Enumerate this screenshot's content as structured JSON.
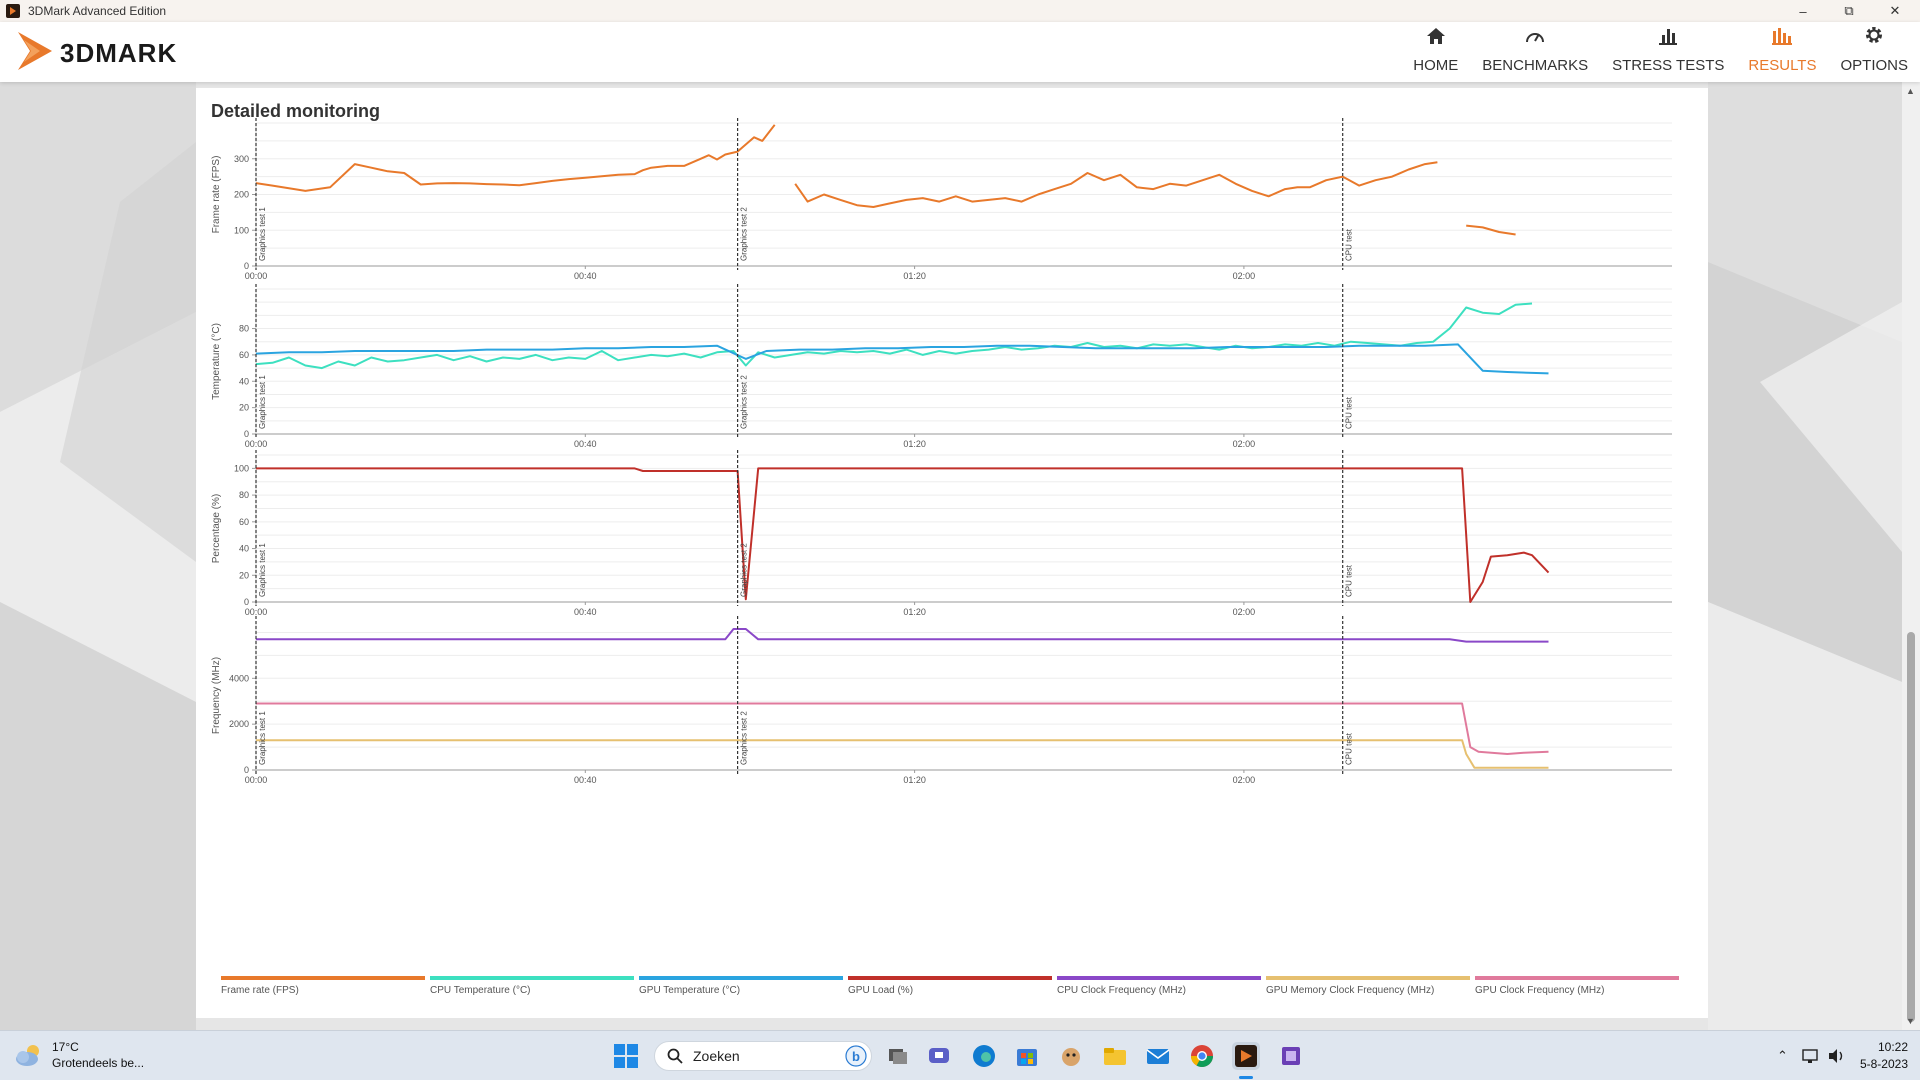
{
  "window": {
    "title": "3DMark Advanced Edition"
  },
  "brand": {
    "name": "3DMARK",
    "accent": "#e8792b"
  },
  "nav": [
    {
      "label": "HOME",
      "icon": "home-icon",
      "active": false
    },
    {
      "label": "BENCHMARKS",
      "icon": "gauge-icon",
      "active": false
    },
    {
      "label": "STRESS TESTS",
      "icon": "bar-chart-icon",
      "active": false
    },
    {
      "label": "RESULTS",
      "icon": "results-icon",
      "active": true
    },
    {
      "label": "OPTIONS",
      "icon": "gear-icon",
      "active": false
    }
  ],
  "panel": {
    "title": "Detailed monitoring"
  },
  "chart_data": [
    {
      "type": "line",
      "ylabel": "Frame rate (FPS)",
      "x_ticks": [
        "00:00",
        "00:40",
        "01:20",
        "02:00"
      ],
      "y_ticks": [
        "0",
        "100",
        "200",
        "300"
      ],
      "ylim": [
        0,
        400
      ],
      "markers": [
        "Graphics test 1",
        "Graphics test 2",
        "CPU test"
      ],
      "series": [
        {
          "name": "Frame rate (FPS)",
          "color": "#e8792b",
          "x": [
            0,
            2,
            6,
            9,
            12,
            14,
            16,
            18,
            20,
            22,
            24,
            26,
            28,
            30,
            32,
            34,
            36,
            38,
            40,
            42,
            44,
            46,
            47,
            48,
            50,
            52,
            54,
            55,
            56,
            57,
            58.5,
            59,
            60.5,
            61.5,
            63,
            64,
            65.5,
            67,
            69,
            71,
            73,
            75,
            77,
            79,
            81,
            83,
            85,
            87,
            89,
            91,
            93,
            95,
            97,
            99,
            101,
            103,
            105,
            107,
            109,
            111,
            113,
            115,
            117,
            119,
            121,
            123,
            125,
            126.5,
            128,
            130,
            132,
            134,
            136,
            138,
            140,
            142,
            143.5,
            145,
            147,
            149,
            151,
            153,
            155,
            157,
            159,
            161,
            163,
            164,
            166,
            168
          ],
          "y": [
            232,
            225,
            210,
            220,
            285,
            275,
            265,
            260,
            228,
            231,
            232,
            231,
            229,
            228,
            226,
            232,
            238,
            243,
            247,
            251,
            255,
            257,
            268,
            275,
            280,
            280,
            300,
            310,
            298,
            312,
            320,
            330,
            360,
            350,
            395,
            null,
            230,
            180,
            200,
            185,
            170,
            165,
            175,
            185,
            190,
            180,
            195,
            180,
            185,
            190,
            180,
            200,
            215,
            230,
            260,
            240,
            255,
            220,
            215,
            230,
            225,
            240,
            255,
            230,
            210,
            195,
            215,
            220,
            220,
            240,
            250,
            225,
            240,
            250,
            270,
            285,
            290,
            null,
            113,
            108,
            95,
            88,
            null,
            null,
            null,
            null,
            null,
            null,
            null,
            null
          ],
          "y_note": ""
        }
      ]
    },
    {
      "type": "line",
      "ylabel": "Temperature (°C)",
      "x_ticks": [
        "00:00",
        "00:40",
        "01:20",
        "02:00"
      ],
      "y_ticks": [
        "0",
        "20",
        "40",
        "60",
        "80"
      ],
      "ylim": [
        0,
        110
      ],
      "markers": [
        "Graphics test 1",
        "Graphics test 2",
        "CPU test"
      ],
      "series": [
        {
          "name": "CPU Temperature (°C)",
          "color": "#3de0c0",
          "x": [
            0,
            2,
            4,
            6,
            8,
            10,
            12,
            14,
            16,
            18,
            20,
            22,
            24,
            26,
            28,
            30,
            32,
            34,
            36,
            38,
            40,
            42,
            44,
            46,
            48,
            50,
            52,
            54,
            56,
            58,
            59.5,
            61,
            63,
            65,
            67,
            69,
            71,
            73,
            75,
            77,
            79,
            81,
            83,
            85,
            87,
            89,
            91,
            93,
            95,
            97,
            99,
            101,
            103,
            105,
            107,
            109,
            111,
            113,
            115,
            117,
            119,
            121,
            123,
            125,
            127,
            129,
            131,
            133,
            135,
            137,
            139,
            141,
            143,
            145,
            147,
            149,
            151,
            153,
            155,
            157
          ],
          "y": [
            53,
            54,
            58,
            52,
            50,
            55,
            52,
            58,
            55,
            56,
            58,
            60,
            56,
            59,
            55,
            58,
            57,
            60,
            56,
            58,
            57,
            63,
            56,
            58,
            60,
            59,
            61,
            58,
            62,
            63,
            52,
            62,
            58,
            60,
            62,
            61,
            63,
            62,
            63,
            61,
            64,
            60,
            63,
            61,
            63,
            64,
            66,
            64,
            65,
            67,
            66,
            69,
            66,
            67,
            65,
            68,
            67,
            68,
            66,
            64,
            67,
            65,
            66,
            68,
            67,
            69,
            67,
            70,
            69,
            68,
            67,
            69,
            70,
            80,
            96,
            92,
            91,
            98,
            99,
            null
          ]
        },
        {
          "name": "GPU Temperature (°C)",
          "color": "#2aa4e0",
          "x": [
            0,
            4,
            8,
            12,
            16,
            20,
            24,
            28,
            32,
            36,
            40,
            44,
            48,
            52,
            56,
            59.5,
            62,
            66,
            70,
            74,
            78,
            82,
            86,
            90,
            94,
            98,
            102,
            106,
            110,
            114,
            118,
            122,
            126,
            130,
            134,
            138,
            142,
            146,
            149,
            152,
            157
          ],
          "y": [
            61,
            62,
            62,
            63,
            63,
            63,
            63,
            64,
            64,
            64,
            65,
            65,
            66,
            66,
            67,
            57,
            63,
            64,
            64,
            65,
            65,
            66,
            66,
            67,
            67,
            66,
            65,
            65,
            65,
            65,
            66,
            66,
            66,
            66,
            67,
            67,
            67,
            68,
            48,
            47,
            46
          ]
        }
      ]
    },
    {
      "type": "line",
      "ylabel": "Percentage (%)",
      "x_ticks": [
        "00:00",
        "00:40",
        "01:20",
        "02:00"
      ],
      "y_ticks": [
        "0",
        "20",
        "40",
        "60",
        "80",
        "100"
      ],
      "ylim": [
        0,
        110
      ],
      "markers": [
        "Graphics test 1",
        "Graphics test 2",
        "CPU test"
      ],
      "series": [
        {
          "name": "GPU Load (%)",
          "color": "#c0302a",
          "x": [
            0,
            23,
            46,
            47,
            57,
            58.5,
            59.5,
            61,
            62,
            90,
            130,
            145,
            146.5,
            147.5,
            149,
            150,
            152,
            154,
            155,
            157
          ],
          "y": [
            100,
            100,
            100,
            98,
            98,
            98,
            2,
            100,
            100,
            100,
            100,
            100,
            100,
            0,
            15,
            34,
            35,
            37,
            35,
            22
          ]
        }
      ]
    },
    {
      "type": "line",
      "ylabel": "Frequency (MHz)",
      "x_ticks": [
        "00:00",
        "00:40",
        "01:20",
        "02:00"
      ],
      "y_ticks": [
        "0",
        "2000",
        "4000"
      ],
      "ylim": [
        0,
        6500
      ],
      "markers": [
        "Graphics test 1",
        "Graphics test 2",
        "CPU test"
      ],
      "series": [
        {
          "name": "CPU Clock Frequency (MHz)",
          "color": "#8a48c8",
          "x": [
            0,
            57,
            58,
            59.5,
            61,
            145,
            147,
            157
          ],
          "y": [
            5700,
            5700,
            6150,
            6150,
            5700,
            5700,
            5600,
            5600
          ]
        },
        {
          "name": "GPU Memory Clock Frequency (MHz)",
          "color": "#e6c070",
          "x": [
            0,
            145,
            146.5,
            147,
            148,
            150,
            157
          ],
          "y": [
            1300,
            1300,
            1300,
            700,
            100,
            100,
            100
          ]
        },
        {
          "name": "GPU Clock Frequency (MHz)",
          "color": "#e07a9c",
          "x": [
            0,
            145,
            146.5,
            147.5,
            148.5,
            152,
            154,
            157
          ],
          "y": [
            2900,
            2900,
            2900,
            1000,
            800,
            700,
            750,
            800
          ]
        }
      ]
    }
  ],
  "legend": [
    {
      "name": "Frame rate (FPS)",
      "color": "#e8792b"
    },
    {
      "name": "CPU Temperature (°C)",
      "color": "#3de0c0"
    },
    {
      "name": "GPU Temperature (°C)",
      "color": "#2aa4e0"
    },
    {
      "name": "GPU Load (%)",
      "color": "#c0302a"
    },
    {
      "name": "CPU Clock Frequency (MHz)",
      "color": "#8a48c8"
    },
    {
      "name": "GPU Memory Clock Frequency (MHz)",
      "color": "#e6c070"
    },
    {
      "name": "GPU Clock Frequency (MHz)",
      "color": "#e07a9c"
    }
  ],
  "taskbar": {
    "weather": {
      "temp": "17°C",
      "desc": "Grotendeels be..."
    },
    "search_placeholder": "Zoeken",
    "apps": [
      "task-view-icon",
      "chat-icon",
      "edge-icon",
      "store-icon",
      "game-icon",
      "file-explorer-icon",
      "mail-icon",
      "chrome-icon",
      "3dmark-icon",
      "cpu-z-icon"
    ],
    "time": "10:22",
    "date": "5-8-2023"
  }
}
